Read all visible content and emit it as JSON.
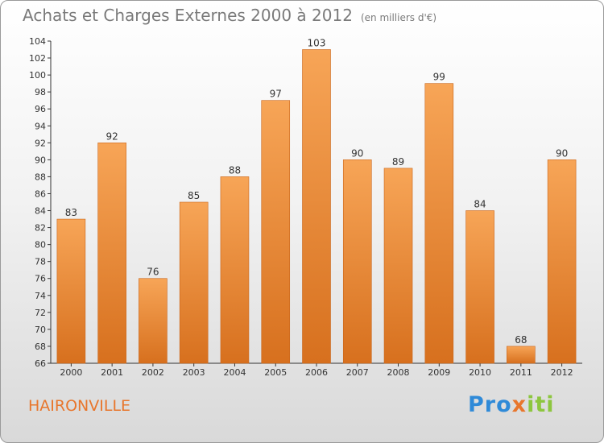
{
  "header": {
    "title": "Achats et Charges Externes 2000 à 2012",
    "unit": "(en milliers d'€)"
  },
  "footer": {
    "commune": "HAIRONVILLE",
    "logo": {
      "part1": "Pro",
      "part2": "x",
      "part3": "iti"
    }
  },
  "chart_data": {
    "type": "bar",
    "title": "Achats et Charges Externes 2000 à 2012",
    "subtitle": "(en milliers d'€)",
    "categories": [
      "2000",
      "2001",
      "2002",
      "2003",
      "2004",
      "2005",
      "2006",
      "2007",
      "2008",
      "2009",
      "2010",
      "2011",
      "2012"
    ],
    "values": [
      83,
      92,
      76,
      85,
      88,
      97,
      103,
      90,
      89,
      99,
      84,
      68,
      90
    ],
    "ylim": [
      66,
      104
    ],
    "yticks": [
      66,
      68,
      70,
      72,
      74,
      76,
      78,
      80,
      82,
      84,
      86,
      88,
      90,
      92,
      94,
      96,
      98,
      100,
      102,
      104
    ],
    "grid": false,
    "bar_color": "#e8862f"
  }
}
